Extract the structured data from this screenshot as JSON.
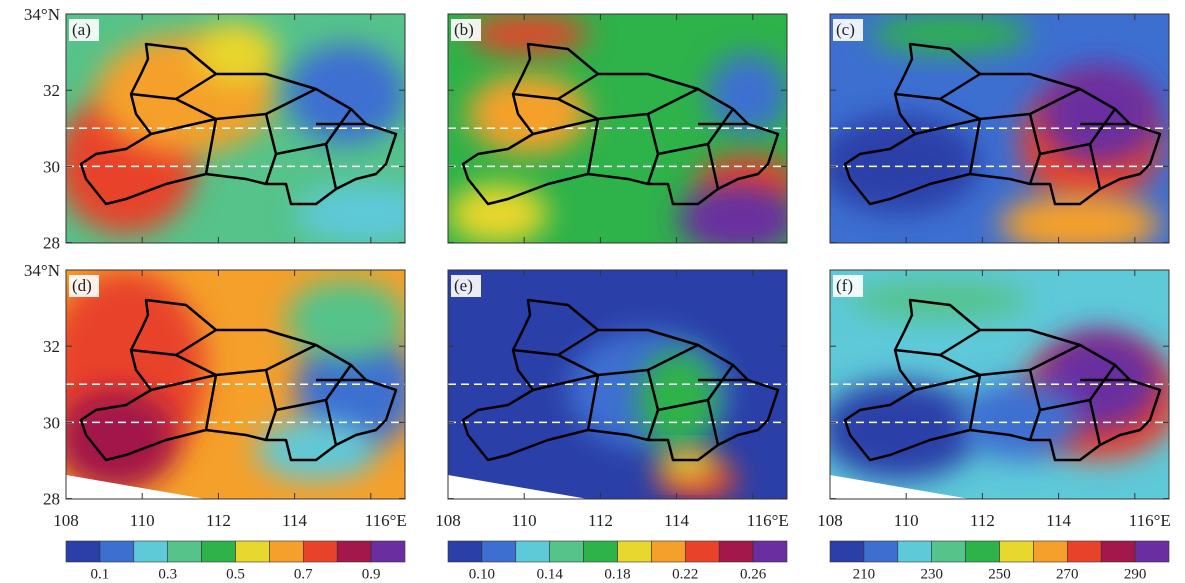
{
  "panels": [
    {
      "label": "(a)"
    },
    {
      "label": "(b)"
    },
    {
      "label": "(c)"
    },
    {
      "label": "(d)"
    },
    {
      "label": "(e)"
    },
    {
      "label": "(f)"
    }
  ],
  "lat_labels": [
    "34°N",
    "32",
    "30",
    "28"
  ],
  "lon_labels": [
    "108",
    "110",
    "112",
    "114",
    "116°E"
  ],
  "colorbar_colors": [
    "#2a3fa8",
    "#3d6fd1",
    "#5ec9d9",
    "#55c38a",
    "#2eb24a",
    "#e8d72c",
    "#f5a02a",
    "#e8432a",
    "#a3174a",
    "#6a2ea0"
  ],
  "colorbars": [
    {
      "labels": [
        "0.1",
        "0.3",
        "0.5",
        "0.7",
        "0.9"
      ]
    },
    {
      "labels": [
        "0.10",
        "0.14",
        "0.18",
        "0.22",
        "0.26"
      ]
    },
    {
      "labels": [
        "210",
        "230",
        "250",
        "270",
        "290"
      ]
    }
  ]
}
